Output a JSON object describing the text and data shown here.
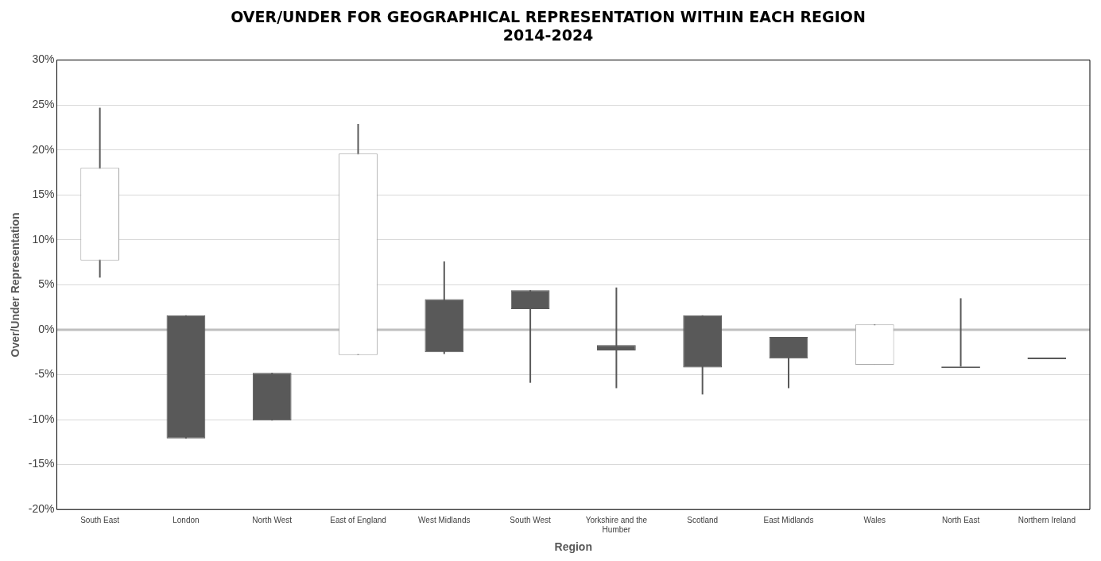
{
  "chart_data": {
    "type": "candlestick",
    "title": "OVER/UNDER FOR GEOGRAPHICAL REPRESENTATION WITHIN EACH REGION\n2014-2024",
    "xlabel": "Region",
    "ylabel": "Over/Under Representation",
    "categories": [
      "South East",
      "London",
      "North West",
      "East of England",
      "West Midlands",
      "South West",
      "Yorkshire and the Humber",
      "Scotland",
      "East Midlands",
      "Wales",
      "North East",
      "Northern Ireland"
    ],
    "ohlc": [
      [
        7.7,
        24.7,
        5.8,
        18.0
      ],
      [
        1.6,
        1.6,
        -12.1,
        -12.1
      ],
      [
        -4.8,
        -4.8,
        -10.1,
        -10.1
      ],
      [
        -2.8,
        22.9,
        -2.8,
        19.6
      ],
      [
        3.4,
        7.6,
        -2.7,
        -2.5
      ],
      [
        4.4,
        4.4,
        -5.9,
        2.3
      ],
      [
        -1.7,
        4.7,
        -6.5,
        -2.3
      ],
      [
        1.6,
        1.6,
        -7.2,
        -4.2
      ],
      [
        -0.8,
        -0.8,
        -6.5,
        -3.2
      ],
      [
        -3.9,
        0.6,
        -3.9,
        0.6
      ],
      [
        -4.1,
        3.5,
        -4.1,
        -4.1
      ],
      [
        -3.1,
        -3.1,
        -3.1,
        -3.1
      ]
    ],
    "colors": [
      "#a6a6a6",
      "#595959",
      "#595959",
      "#a6a6a6",
      "#595959",
      "#595959",
      "#595959",
      "#595959",
      "#595959",
      "#a6a6a6",
      "#595959",
      "#595959"
    ],
    "ylim": [
      -20,
      30
    ],
    "yticks": [
      {
        "value": -20,
        "label": "-20%"
      },
      {
        "value": -15,
        "label": "-15%"
      },
      {
        "value": -10,
        "label": "-10%"
      },
      {
        "value": -5,
        "label": "-5%"
      },
      {
        "value": 0,
        "label": "0%"
      },
      {
        "value": 5,
        "label": "5%"
      },
      {
        "value": 10,
        "label": "10%"
      },
      {
        "value": 15,
        "label": "15%"
      },
      {
        "value": 20,
        "label": "20%"
      },
      {
        "value": 25,
        "label": "25%"
      },
      {
        "value": 30,
        "label": "30%"
      }
    ],
    "grid": "y",
    "ref_lines": [
      {
        "axis": "y",
        "value": 0,
        "color": "#bfbfbf"
      }
    ]
  }
}
